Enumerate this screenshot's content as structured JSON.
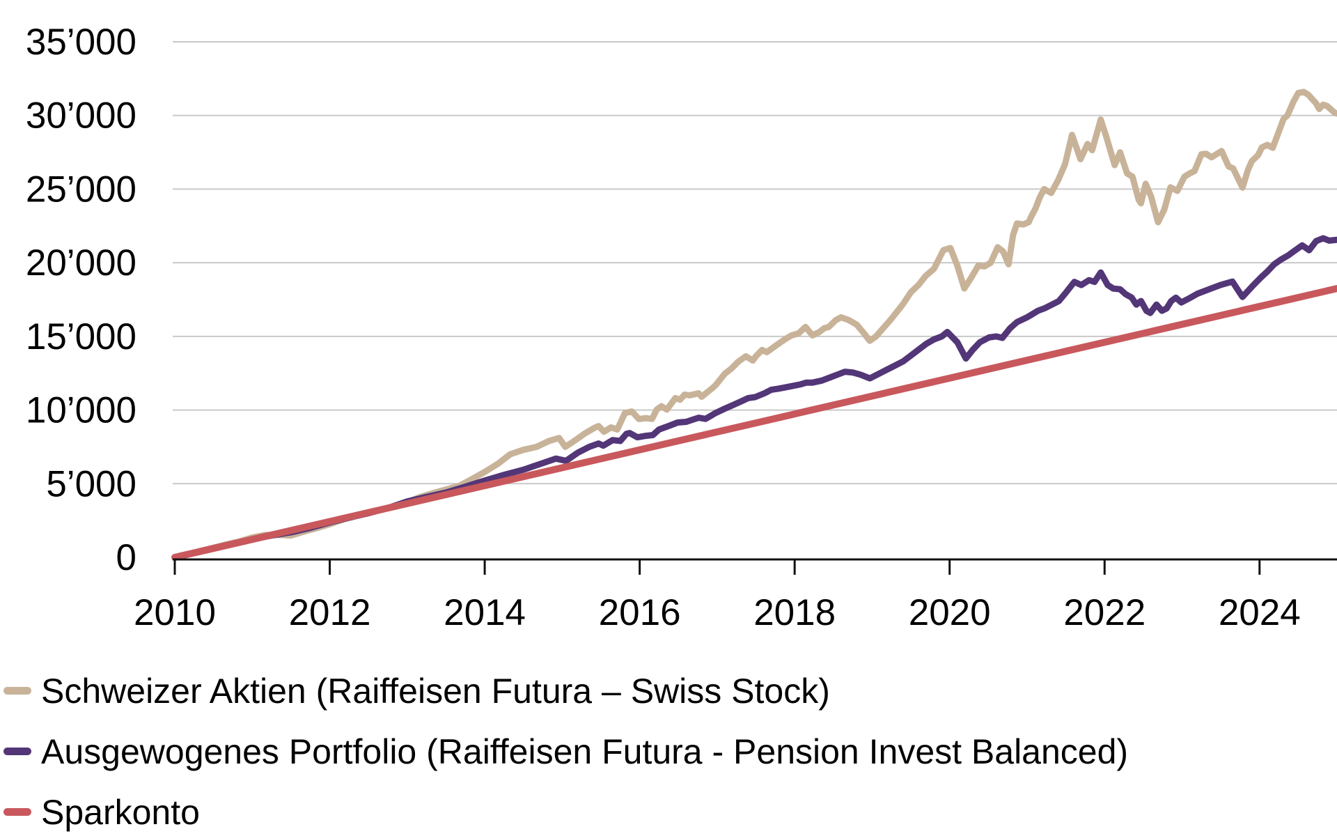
{
  "page": {
    "background": "#ffffff"
  },
  "chart_data": {
    "type": "line",
    "title": "",
    "xlabel": "",
    "ylabel": "",
    "grid": true,
    "legend_position": "bottom-left",
    "x_axis": {
      "range": [
        2010,
        2025
      ],
      "tick_years": [
        2010,
        2012,
        2014,
        2016,
        2018,
        2020,
        2022,
        2024
      ],
      "tick_labels": [
        "2010",
        "2012",
        "2014",
        "2016",
        "2018",
        "2020",
        "2022",
        "2024"
      ]
    },
    "y_axis": {
      "range": [
        0,
        35000
      ],
      "tick_values": [
        0,
        5000,
        10000,
        15000,
        20000,
        25000,
        30000,
        35000
      ],
      "tick_labels": [
        "0",
        "5’000",
        "10’000",
        "15’000",
        "20’000",
        "25’000",
        "30’000",
        "35’000"
      ]
    },
    "colors": {
      "gridline": "#C9C9C9",
      "axis": "#111111",
      "text": "#000000"
    },
    "series": [
      {
        "name": "Schweizer Aktien (Raiffeisen Futura – Swiss Stock)",
        "color": "#C8B399",
        "width": 9,
        "points": [
          [
            2010.0,
            0
          ],
          [
            2010.17,
            200
          ],
          [
            2010.33,
            430
          ],
          [
            2010.5,
            650
          ],
          [
            2010.67,
            880
          ],
          [
            2010.83,
            1080
          ],
          [
            2011.0,
            1350
          ],
          [
            2011.17,
            1520
          ],
          [
            2011.33,
            1530
          ],
          [
            2011.5,
            1480
          ],
          [
            2011.67,
            1750
          ],
          [
            2011.83,
            1980
          ],
          [
            2012.0,
            2250
          ],
          [
            2012.17,
            2570
          ],
          [
            2012.33,
            2820
          ],
          [
            2012.5,
            3050
          ],
          [
            2012.67,
            3250
          ],
          [
            2012.83,
            3450
          ],
          [
            2013.0,
            3750
          ],
          [
            2013.17,
            4100
          ],
          [
            2013.33,
            4350
          ],
          [
            2013.5,
            4600
          ],
          [
            2013.67,
            4850
          ],
          [
            2013.83,
            5300
          ],
          [
            2014.0,
            5800
          ],
          [
            2014.17,
            6350
          ],
          [
            2014.33,
            7000
          ],
          [
            2014.5,
            7300
          ],
          [
            2014.67,
            7500
          ],
          [
            2014.83,
            7900
          ],
          [
            2014.96,
            8100
          ],
          [
            2015.04,
            7500
          ],
          [
            2015.17,
            7950
          ],
          [
            2015.29,
            8400
          ],
          [
            2015.42,
            8800
          ],
          [
            2015.47,
            8910
          ],
          [
            2015.54,
            8530
          ],
          [
            2015.63,
            8820
          ],
          [
            2015.71,
            8680
          ],
          [
            2015.81,
            9800
          ],
          [
            2015.9,
            9900
          ],
          [
            2015.99,
            9390
          ],
          [
            2016.08,
            9450
          ],
          [
            2016.16,
            9400
          ],
          [
            2016.22,
            10030
          ],
          [
            2016.28,
            10260
          ],
          [
            2016.35,
            10030
          ],
          [
            2016.46,
            10810
          ],
          [
            2016.52,
            10700
          ],
          [
            2016.58,
            11050
          ],
          [
            2016.65,
            11000
          ],
          [
            2016.76,
            11140
          ],
          [
            2016.8,
            10900
          ],
          [
            2016.93,
            11450
          ],
          [
            2016.98,
            11690
          ],
          [
            2017.1,
            12470
          ],
          [
            2017.18,
            12800
          ],
          [
            2017.27,
            13270
          ],
          [
            2017.37,
            13650
          ],
          [
            2017.46,
            13360
          ],
          [
            2017.5,
            13650
          ],
          [
            2017.58,
            14080
          ],
          [
            2017.64,
            13930
          ],
          [
            2017.78,
            14460
          ],
          [
            2017.87,
            14790
          ],
          [
            2017.96,
            15070
          ],
          [
            2018.05,
            15200
          ],
          [
            2018.14,
            15640
          ],
          [
            2018.23,
            15070
          ],
          [
            2018.32,
            15300
          ],
          [
            2018.38,
            15550
          ],
          [
            2018.44,
            15640
          ],
          [
            2018.53,
            16100
          ],
          [
            2018.6,
            16300
          ],
          [
            2018.7,
            16100
          ],
          [
            2018.8,
            15800
          ],
          [
            2018.88,
            15300
          ],
          [
            2018.97,
            14700
          ],
          [
            2019.05,
            15000
          ],
          [
            2019.1,
            15300
          ],
          [
            2019.25,
            16200
          ],
          [
            2019.4,
            17200
          ],
          [
            2019.5,
            18000
          ],
          [
            2019.6,
            18500
          ],
          [
            2019.69,
            19100
          ],
          [
            2019.8,
            19600
          ],
          [
            2019.92,
            20860
          ],
          [
            2020.01,
            21000
          ],
          [
            2020.1,
            19800
          ],
          [
            2020.19,
            18250
          ],
          [
            2020.28,
            19000
          ],
          [
            2020.37,
            19810
          ],
          [
            2020.45,
            19750
          ],
          [
            2020.53,
            20000
          ],
          [
            2020.62,
            21050
          ],
          [
            2020.69,
            20770
          ],
          [
            2020.76,
            19900
          ],
          [
            2020.82,
            21900
          ],
          [
            2020.87,
            22670
          ],
          [
            2020.95,
            22600
          ],
          [
            2021.02,
            22750
          ],
          [
            2021.05,
            23100
          ],
          [
            2021.11,
            23700
          ],
          [
            2021.16,
            24400
          ],
          [
            2021.22,
            25000
          ],
          [
            2021.31,
            24740
          ],
          [
            2021.4,
            25600
          ],
          [
            2021.49,
            26700
          ],
          [
            2021.58,
            28680
          ],
          [
            2021.69,
            27030
          ],
          [
            2021.78,
            28060
          ],
          [
            2021.84,
            27640
          ],
          [
            2021.95,
            29720
          ],
          [
            2022.02,
            28590
          ],
          [
            2022.13,
            26630
          ],
          [
            2022.2,
            27500
          ],
          [
            2022.29,
            26070
          ],
          [
            2022.36,
            25840
          ],
          [
            2022.44,
            24270
          ],
          [
            2022.47,
            24030
          ],
          [
            2022.53,
            25360
          ],
          [
            2022.6,
            24500
          ],
          [
            2022.69,
            22750
          ],
          [
            2022.77,
            23600
          ],
          [
            2022.85,
            25120
          ],
          [
            2022.94,
            24880
          ],
          [
            2023.03,
            25840
          ],
          [
            2023.1,
            26070
          ],
          [
            2023.16,
            26220
          ],
          [
            2023.25,
            27360
          ],
          [
            2023.31,
            27400
          ],
          [
            2023.38,
            27160
          ],
          [
            2023.51,
            27590
          ],
          [
            2023.6,
            26540
          ],
          [
            2023.66,
            26400
          ],
          [
            2023.78,
            25100
          ],
          [
            2023.85,
            26300
          ],
          [
            2023.9,
            26900
          ],
          [
            2023.98,
            27300
          ],
          [
            2024.03,
            27830
          ],
          [
            2024.1,
            28000
          ],
          [
            2024.17,
            27800
          ],
          [
            2024.25,
            28920
          ],
          [
            2024.31,
            29770
          ],
          [
            2024.36,
            30000
          ],
          [
            2024.44,
            30960
          ],
          [
            2024.5,
            31530
          ],
          [
            2024.57,
            31600
          ],
          [
            2024.63,
            31400
          ],
          [
            2024.73,
            30820
          ],
          [
            2024.77,
            30440
          ],
          [
            2024.82,
            30730
          ],
          [
            2024.87,
            30650
          ],
          [
            2024.97,
            30180
          ],
          [
            2025.0,
            30130
          ]
        ]
      },
      {
        "name": "Ausgewogenes Portfolio (Raiffeisen Futura - Pension Invest Balanced)",
        "color": "#533677",
        "width": 9,
        "points": [
          [
            2010.0,
            0
          ],
          [
            2010.25,
            300
          ],
          [
            2010.5,
            620
          ],
          [
            2010.75,
            920
          ],
          [
            2011.0,
            1230
          ],
          [
            2011.25,
            1480
          ],
          [
            2011.5,
            1700
          ],
          [
            2011.75,
            2000
          ],
          [
            2012.0,
            2370
          ],
          [
            2012.25,
            2690
          ],
          [
            2012.5,
            3000
          ],
          [
            2012.75,
            3350
          ],
          [
            2013.0,
            3800
          ],
          [
            2013.25,
            4100
          ],
          [
            2013.5,
            4400
          ],
          [
            2013.75,
            4800
          ],
          [
            2014.0,
            5210
          ],
          [
            2014.25,
            5600
          ],
          [
            2014.5,
            5950
          ],
          [
            2014.75,
            6400
          ],
          [
            2014.92,
            6700
          ],
          [
            2015.05,
            6550
          ],
          [
            2015.2,
            7100
          ],
          [
            2015.35,
            7500
          ],
          [
            2015.47,
            7730
          ],
          [
            2015.53,
            7580
          ],
          [
            2015.65,
            7960
          ],
          [
            2015.75,
            7900
          ],
          [
            2015.83,
            8390
          ],
          [
            2015.87,
            8440
          ],
          [
            2015.97,
            8150
          ],
          [
            2016.08,
            8250
          ],
          [
            2016.17,
            8300
          ],
          [
            2016.25,
            8680
          ],
          [
            2016.37,
            8910
          ],
          [
            2016.49,
            9150
          ],
          [
            2016.6,
            9200
          ],
          [
            2016.76,
            9480
          ],
          [
            2016.85,
            9400
          ],
          [
            2016.98,
            9800
          ],
          [
            2017.1,
            10100
          ],
          [
            2017.18,
            10280
          ],
          [
            2017.31,
            10590
          ],
          [
            2017.4,
            10810
          ],
          [
            2017.49,
            10880
          ],
          [
            2017.61,
            11140
          ],
          [
            2017.7,
            11380
          ],
          [
            2017.79,
            11450
          ],
          [
            2017.96,
            11620
          ],
          [
            2018.08,
            11750
          ],
          [
            2018.15,
            11860
          ],
          [
            2018.23,
            11860
          ],
          [
            2018.35,
            12000
          ],
          [
            2018.44,
            12180
          ],
          [
            2018.55,
            12400
          ],
          [
            2018.65,
            12600
          ],
          [
            2018.75,
            12550
          ],
          [
            2018.85,
            12400
          ],
          [
            2018.97,
            12150
          ],
          [
            2019.1,
            12500
          ],
          [
            2019.25,
            12900
          ],
          [
            2019.4,
            13300
          ],
          [
            2019.5,
            13700
          ],
          [
            2019.6,
            14100
          ],
          [
            2019.7,
            14500
          ],
          [
            2019.8,
            14800
          ],
          [
            2019.9,
            15000
          ],
          [
            2019.97,
            15300
          ],
          [
            2020.1,
            14600
          ],
          [
            2020.21,
            13500
          ],
          [
            2020.3,
            14100
          ],
          [
            2020.39,
            14600
          ],
          [
            2020.51,
            14930
          ],
          [
            2020.6,
            15000
          ],
          [
            2020.68,
            14900
          ],
          [
            2020.78,
            15550
          ],
          [
            2020.87,
            15970
          ],
          [
            2021.0,
            16300
          ],
          [
            2021.05,
            16450
          ],
          [
            2021.14,
            16740
          ],
          [
            2021.23,
            16920
          ],
          [
            2021.32,
            17160
          ],
          [
            2021.41,
            17400
          ],
          [
            2021.49,
            17900
          ],
          [
            2021.61,
            18700
          ],
          [
            2021.7,
            18490
          ],
          [
            2021.8,
            18820
          ],
          [
            2021.87,
            18700
          ],
          [
            2021.95,
            19340
          ],
          [
            2022.04,
            18490
          ],
          [
            2022.11,
            18250
          ],
          [
            2022.2,
            18200
          ],
          [
            2022.27,
            17870
          ],
          [
            2022.35,
            17630
          ],
          [
            2022.41,
            17160
          ],
          [
            2022.47,
            17400
          ],
          [
            2022.54,
            16740
          ],
          [
            2022.59,
            16590
          ],
          [
            2022.67,
            17160
          ],
          [
            2022.74,
            16740
          ],
          [
            2022.8,
            16900
          ],
          [
            2022.86,
            17400
          ],
          [
            2022.92,
            17630
          ],
          [
            2022.99,
            17300
          ],
          [
            2023.11,
            17630
          ],
          [
            2023.2,
            17900
          ],
          [
            2023.3,
            18100
          ],
          [
            2023.4,
            18300
          ],
          [
            2023.5,
            18500
          ],
          [
            2023.65,
            18720
          ],
          [
            2023.78,
            17680
          ],
          [
            2023.92,
            18480
          ],
          [
            2024.01,
            18960
          ],
          [
            2024.1,
            19400
          ],
          [
            2024.19,
            19900
          ],
          [
            2024.28,
            20230
          ],
          [
            2024.37,
            20500
          ],
          [
            2024.46,
            20850
          ],
          [
            2024.55,
            21180
          ],
          [
            2024.64,
            20850
          ],
          [
            2024.73,
            21470
          ],
          [
            2024.82,
            21660
          ],
          [
            2024.9,
            21500
          ],
          [
            2025.0,
            21560
          ]
        ]
      },
      {
        "name": "Sparkonto",
        "color": "#C8585C",
        "width": 10,
        "points": [
          [
            2010.0,
            0
          ],
          [
            2017.5,
            9125
          ],
          [
            2025.0,
            18250
          ]
        ]
      }
    ]
  }
}
